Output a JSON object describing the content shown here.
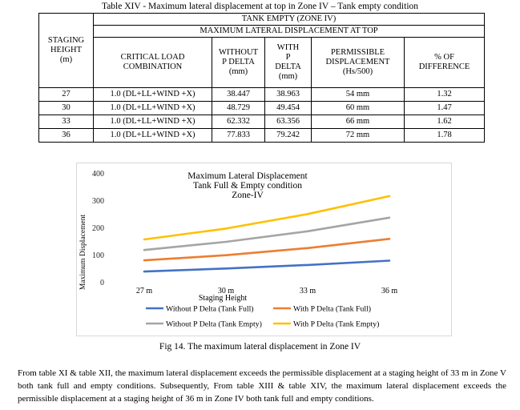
{
  "table_caption": "Table XIV - Maximum lateral displacement at top in Zone IV – Tank empty condition",
  "table": {
    "h_tank": "TANK EMPTY (ZONE IV)",
    "h_max": "MAXIMUM LATERAL DISPLACEMENT AT TOP",
    "h_staging": [
      "STAGING",
      "HEIGHT",
      "(m)"
    ],
    "h_critical": [
      "CRITICAL LOAD",
      "COMBINATION"
    ],
    "h_without": [
      "WITHOUT",
      "P DELTA",
      "(mm)"
    ],
    "h_with": [
      "WITH",
      "P",
      "DELTA",
      "(mm)"
    ],
    "h_perm": [
      "PERMISSIBLE",
      "DISPLACEMENT",
      "(Hs/500)"
    ],
    "h_diff": [
      "% OF",
      "DIFFERENCE"
    ],
    "rows": [
      {
        "height": "27",
        "combo": "1.0 (DL+LL+WIND +X)",
        "without": "38.447",
        "with": "38.963",
        "perm": "54 mm",
        "diff": "1.32"
      },
      {
        "height": "30",
        "combo": "1.0 (DL+LL+WIND +X)",
        "without": "48.729",
        "with": "49.454",
        "perm": "60 mm",
        "diff": "1.47"
      },
      {
        "height": "33",
        "combo": "1.0 (DL+LL+WIND +X)",
        "without": "62.332",
        "with": "63.356",
        "perm": "66 mm",
        "diff": "1.62"
      },
      {
        "height": "36",
        "combo": "1.0 (DL+LL+WIND +X)",
        "without": "77.833",
        "with": "79.242",
        "perm": "72 mm",
        "diff": "1.78"
      }
    ]
  },
  "chart_data": {
    "type": "line",
    "title": [
      "Maximum Lateral Displacement",
      "Tank Full & Empty condition",
      "Zone-IV"
    ],
    "xlabel": "Staging Height",
    "ylabel": "Maximum Displacement",
    "categories": [
      "27 m",
      "30 m",
      "33 m",
      "36 m"
    ],
    "ylim": [
      0,
      400
    ],
    "yticks": [
      "0",
      "100",
      "200",
      "300",
      "400"
    ],
    "grid": false,
    "legend_position": "bottom",
    "series": [
      {
        "name": "Without P Delta (Tank Full)",
        "color": "#4472c4",
        "values": [
          38,
          49,
          62,
          78
        ]
      },
      {
        "name": "With P Delta (Tank Full)",
        "color": "#ed7d31",
        "values": [
          79,
          98,
          124,
          158
        ]
      },
      {
        "name": "Without P Delta (Tank Empty)",
        "color": "#a5a5a5",
        "values": [
          117,
          147,
          186,
          236
        ]
      },
      {
        "name": "With P Delta (Tank Empty)",
        "color": "#ffc000",
        "values": [
          156,
          196,
          249,
          315
        ]
      }
    ]
  },
  "figure_caption": "Fig 14. The maximum lateral displacement in Zone IV",
  "paragraph": "From table XI & table XII, the maximum lateral displacement exceeds the permissible displacement at a staging height of 33 m in Zone V both tank full and empty conditions. Subsequently, From table XIII & table XIV, the maximum lateral displacement exceeds the permissible displacement at a staging height of 36 m in Zone IV both tank full and empty conditions."
}
